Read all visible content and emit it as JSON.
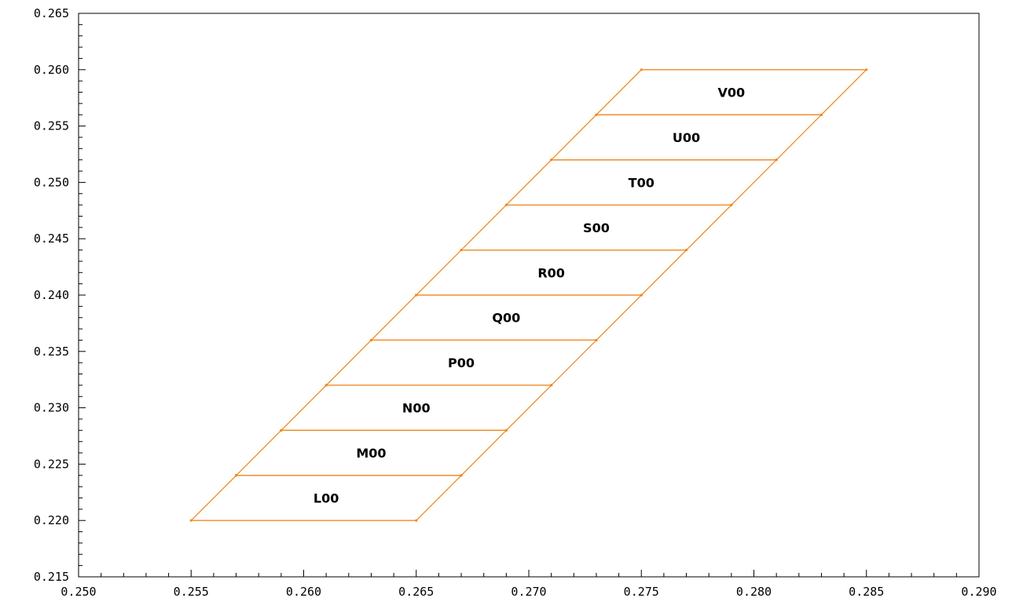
{
  "colors": {
    "stroke": "#f08a24",
    "axis": "#000000",
    "text": "#000000",
    "background": "#ffffff"
  },
  "chart_data": {
    "type": "line",
    "title": "",
    "xlabel": "",
    "ylabel": "",
    "xlim": [
      0.25,
      0.29
    ],
    "ylim": [
      0.215,
      0.265
    ],
    "grid": false,
    "x_ticks": [
      "0.250",
      "0.255",
      "0.260",
      "0.265",
      "0.270",
      "0.275",
      "0.280",
      "0.285",
      "0.290"
    ],
    "y_ticks": [
      "0.215",
      "0.220",
      "0.225",
      "0.230",
      "0.235",
      "0.240",
      "0.245",
      "0.250",
      "0.255",
      "0.260",
      "0.265"
    ],
    "regions": [
      {
        "label": "L00",
        "polygon": [
          [
            0.255,
            0.22
          ],
          [
            0.265,
            0.22
          ],
          [
            0.267,
            0.224
          ],
          [
            0.257,
            0.224
          ]
        ]
      },
      {
        "label": "M00",
        "polygon": [
          [
            0.257,
            0.224
          ],
          [
            0.267,
            0.224
          ],
          [
            0.269,
            0.228
          ],
          [
            0.259,
            0.228
          ]
        ]
      },
      {
        "label": "N00",
        "polygon": [
          [
            0.259,
            0.228
          ],
          [
            0.269,
            0.228
          ],
          [
            0.271,
            0.232
          ],
          [
            0.261,
            0.232
          ]
        ]
      },
      {
        "label": "P00",
        "polygon": [
          [
            0.261,
            0.232
          ],
          [
            0.271,
            0.232
          ],
          [
            0.273,
            0.236
          ],
          [
            0.263,
            0.236
          ]
        ]
      },
      {
        "label": "Q00",
        "polygon": [
          [
            0.263,
            0.236
          ],
          [
            0.273,
            0.236
          ],
          [
            0.275,
            0.24
          ],
          [
            0.265,
            0.24
          ]
        ]
      },
      {
        "label": "R00",
        "polygon": [
          [
            0.265,
            0.24
          ],
          [
            0.275,
            0.24
          ],
          [
            0.277,
            0.244
          ],
          [
            0.267,
            0.244
          ]
        ]
      },
      {
        "label": "S00",
        "polygon": [
          [
            0.267,
            0.244
          ],
          [
            0.277,
            0.244
          ],
          [
            0.279,
            0.248
          ],
          [
            0.269,
            0.248
          ]
        ]
      },
      {
        "label": "T00",
        "polygon": [
          [
            0.269,
            0.248
          ],
          [
            0.279,
            0.248
          ],
          [
            0.281,
            0.252
          ],
          [
            0.271,
            0.252
          ]
        ]
      },
      {
        "label": "U00",
        "polygon": [
          [
            0.271,
            0.252
          ],
          [
            0.281,
            0.252
          ],
          [
            0.283,
            0.256
          ],
          [
            0.273,
            0.256
          ]
        ]
      },
      {
        "label": "V00",
        "polygon": [
          [
            0.273,
            0.256
          ],
          [
            0.283,
            0.256
          ],
          [
            0.285,
            0.26
          ],
          [
            0.275,
            0.26
          ]
        ]
      }
    ]
  }
}
